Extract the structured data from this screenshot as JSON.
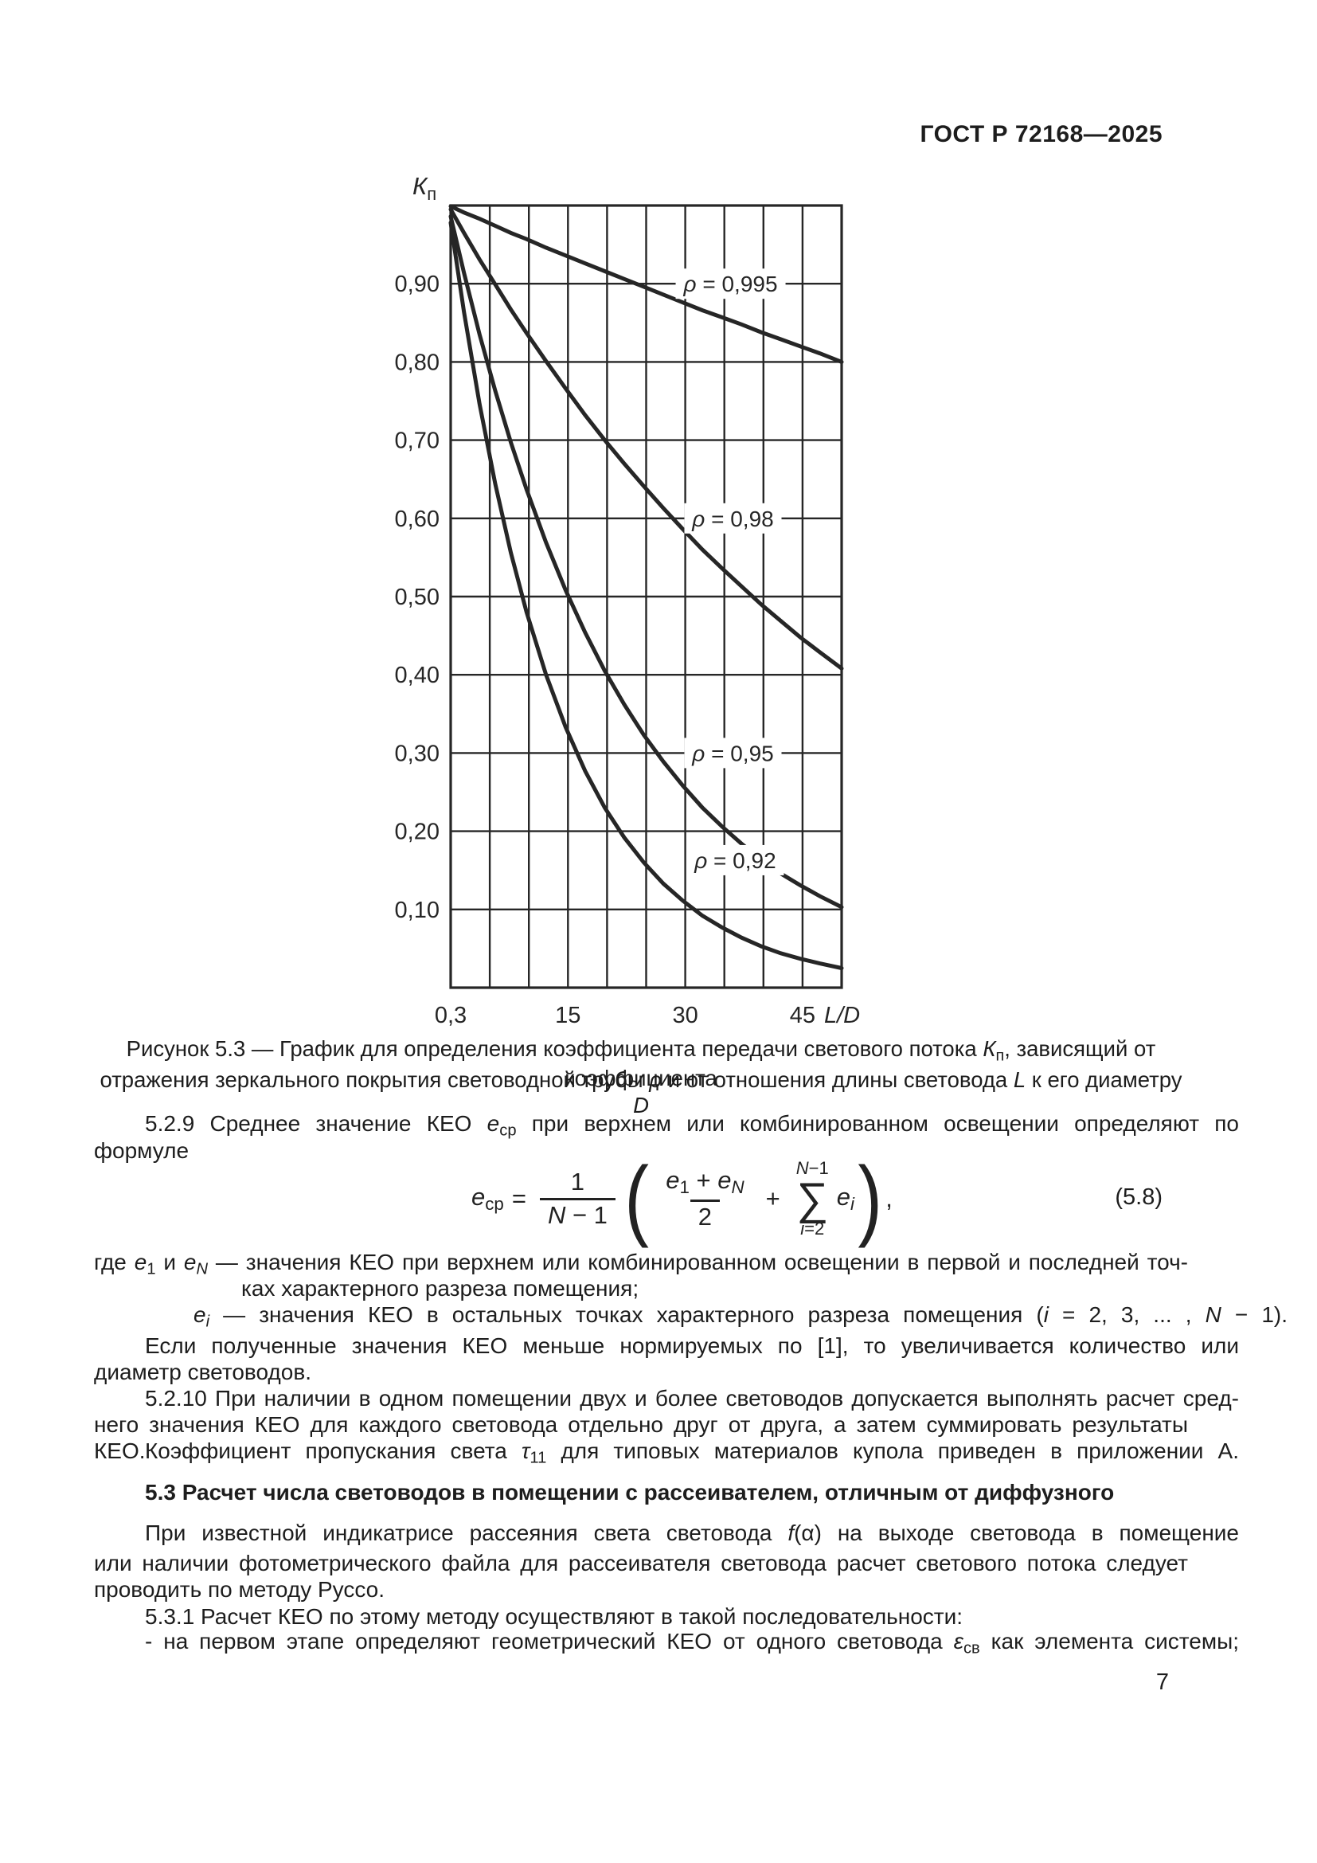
{
  "page": {
    "header": "ГОСТ Р 72168—2025",
    "number": "7"
  },
  "chart_data": {
    "type": "line",
    "title": "",
    "y_axis_title": {
      "main": "К",
      "sub": "п"
    },
    "x_axis_title": "L/D",
    "xlim": [
      0.3,
      50.3
    ],
    "ylim": [
      0,
      1.0
    ],
    "grid": true,
    "x_grid_columns": 10,
    "y_grid_step": 0.1,
    "x_ticks": [
      {
        "col": 0,
        "label": "0,3"
      },
      {
        "col": 3,
        "label": "15"
      },
      {
        "col": 6,
        "label": "30"
      },
      {
        "col": 9,
        "label": "45"
      }
    ],
    "y_ticks": [
      {
        "v": 0.9,
        "label": "0,90"
      },
      {
        "v": 0.8,
        "label": "0,80"
      },
      {
        "v": 0.7,
        "label": "0,70"
      },
      {
        "v": 0.6,
        "label": "0,60"
      },
      {
        "v": 0.5,
        "label": "0,50"
      },
      {
        "v": 0.4,
        "label": "0,40"
      },
      {
        "v": 0.3,
        "label": "0,30"
      },
      {
        "v": 0.2,
        "label": "0,20"
      },
      {
        "v": 0.1,
        "label": "0,10"
      }
    ],
    "series": [
      {
        "name": "ρ = 0,995",
        "reflectance": 0.995,
        "label": {
          "text": "ρ = 0,995",
          "x": 36.1,
          "y": 0.9,
          "w": 138
        },
        "points": [
          [
            0.3,
            0.999
          ],
          [
            2,
            0.991
          ],
          [
            4,
            0.983
          ],
          [
            6,
            0.974
          ],
          [
            8,
            0.965
          ],
          [
            10,
            0.957
          ],
          [
            12.5,
            0.946
          ],
          [
            15,
            0.936
          ],
          [
            17.5,
            0.926
          ],
          [
            20,
            0.916
          ],
          [
            22.5,
            0.906
          ],
          [
            25,
            0.896
          ],
          [
            27.5,
            0.886
          ],
          [
            30,
            0.876
          ],
          [
            32.5,
            0.866
          ],
          [
            35,
            0.857
          ],
          [
            37.5,
            0.848
          ],
          [
            40,
            0.838
          ],
          [
            42.5,
            0.829
          ],
          [
            45,
            0.82
          ],
          [
            47.5,
            0.811
          ],
          [
            50.3,
            0.8
          ]
        ]
      },
      {
        "name": "ρ = 0,98",
        "reflectance": 0.98,
        "label": {
          "text": "ρ = 0,98",
          "x": 36.4,
          "y": 0.6,
          "w": 122
        },
        "points": [
          [
            0.3,
            0.995
          ],
          [
            2,
            0.965
          ],
          [
            4,
            0.931
          ],
          [
            6,
            0.899
          ],
          [
            8,
            0.867
          ],
          [
            10,
            0.837
          ],
          [
            12.5,
            0.801
          ],
          [
            15,
            0.766
          ],
          [
            17.5,
            0.732
          ],
          [
            20,
            0.7
          ],
          [
            22.5,
            0.67
          ],
          [
            25,
            0.641
          ],
          [
            27.5,
            0.613
          ],
          [
            30,
            0.586
          ],
          [
            32.5,
            0.56
          ],
          [
            35,
            0.536
          ],
          [
            37.5,
            0.513
          ],
          [
            40,
            0.49
          ],
          [
            42.5,
            0.469
          ],
          [
            45,
            0.448
          ],
          [
            47.5,
            0.429
          ],
          [
            50.3,
            0.408
          ]
        ]
      },
      {
        "name": "ρ = 0,95",
        "reflectance": 0.95,
        "label": {
          "text": "ρ = 0,95",
          "x": 36.4,
          "y": 0.3,
          "w": 122
        },
        "points": [
          [
            0.3,
            0.986
          ],
          [
            2,
            0.914
          ],
          [
            4,
            0.835
          ],
          [
            6,
            0.763
          ],
          [
            8,
            0.697
          ],
          [
            10,
            0.637
          ],
          [
            12.5,
            0.569
          ],
          [
            15,
            0.508
          ],
          [
            17.5,
            0.454
          ],
          [
            20,
            0.405
          ],
          [
            22.5,
            0.362
          ],
          [
            25,
            0.323
          ],
          [
            27.5,
            0.289
          ],
          [
            30,
            0.258
          ],
          [
            32.5,
            0.23
          ],
          [
            35,
            0.206
          ],
          [
            37.5,
            0.184
          ],
          [
            40,
            0.164
          ],
          [
            42.5,
            0.146
          ],
          [
            45,
            0.131
          ],
          [
            47.5,
            0.117
          ],
          [
            50.3,
            0.103
          ]
        ]
      },
      {
        "name": "ρ = 0,92",
        "reflectance": 0.92,
        "label": {
          "text": "ρ = 0,92",
          "x": 36.7,
          "y": 0.163,
          "w": 122
        },
        "points": [
          [
            0.3,
            0.978
          ],
          [
            2,
            0.864
          ],
          [
            4,
            0.746
          ],
          [
            6,
            0.644
          ],
          [
            8,
            0.556
          ],
          [
            10,
            0.48
          ],
          [
            12.5,
            0.4
          ],
          [
            15,
            0.333
          ],
          [
            17.5,
            0.277
          ],
          [
            20,
            0.23
          ],
          [
            22.5,
            0.192
          ],
          [
            25,
            0.16
          ],
          [
            27.5,
            0.133
          ],
          [
            30,
            0.111
          ],
          [
            32.5,
            0.092
          ],
          [
            35,
            0.077
          ],
          [
            37.5,
            0.064
          ],
          [
            40,
            0.053
          ],
          [
            42.5,
            0.044
          ],
          [
            45,
            0.037
          ],
          [
            47.5,
            0.031
          ],
          [
            50.3,
            0.025
          ]
        ]
      }
    ]
  },
  "figure_caption": {
    "line1": [
      [
        "t",
        "Рисунок 5.3 — График для определения коэффициента передачи светового потока "
      ],
      [
        "i",
        "К"
      ],
      [
        "s",
        "п"
      ],
      [
        "t",
        ", зависящий от коэффициента"
      ]
    ],
    "line2": [
      [
        "t",
        "отражения зеркального покрытия световодной трубы "
      ],
      [
        "i",
        "ρ"
      ],
      [
        "t",
        " и от отношения длины световода "
      ],
      [
        "i",
        "L"
      ],
      [
        "t",
        " к его диаметру "
      ],
      [
        "i",
        "D"
      ]
    ]
  },
  "formula": {
    "number": "(5.8)",
    "lhs": [
      [
        "i",
        "е"
      ],
      [
        "s",
        "ср"
      ]
    ],
    "eq": "=",
    "coef_num": [
      [
        "t",
        "1"
      ]
    ],
    "coef_den": [
      [
        "i",
        "N"
      ],
      [
        "t",
        " − 1"
      ]
    ],
    "open_paren": "(",
    "frac_num": [
      [
        "i",
        "е"
      ],
      [
        "s",
        "1"
      ],
      [
        "t",
        " + "
      ],
      [
        "i",
        "е"
      ],
      [
        "si",
        "N"
      ]
    ],
    "frac_den": [
      [
        "t",
        "2"
      ]
    ],
    "plus": "+",
    "sum_upper": [
      [
        "i",
        "N"
      ],
      [
        "t",
        "−1"
      ]
    ],
    "sum_symbol": "∑",
    "sum_lower": [
      [
        "i",
        "i"
      ],
      [
        "t",
        "=2"
      ]
    ],
    "term": [
      [
        "i",
        "е"
      ],
      [
        "si",
        "i"
      ]
    ],
    "close_paren": ")",
    "comma": ","
  },
  "body": {
    "lines": [
      {
        "top": 1394,
        "indent": 64,
        "justify": true,
        "bold": false,
        "segments": [
          [
            "t",
            "5.2.9 Среднее значение КЕО "
          ],
          [
            "i",
            "е"
          ],
          [
            "s",
            "ср"
          ],
          [
            "t",
            " при верхнем или комбинированном освещении определяют по"
          ]
        ]
      },
      {
        "top": 1428,
        "indent": 0,
        "justify": false,
        "bold": false,
        "segments": [
          [
            "t",
            "формуле"
          ]
        ]
      },
      {
        "top": 1568,
        "indent": 0,
        "justify": true,
        "bold": false,
        "segments": [
          [
            "t",
            "где "
          ],
          [
            "i",
            "е"
          ],
          [
            "s",
            "1"
          ],
          [
            "t",
            " и "
          ],
          [
            "i",
            "е"
          ],
          [
            "si",
            "N"
          ],
          [
            "t",
            "  — значения КЕО при верхнем или комбинированном освещении в первой и последней точ-"
          ]
        ]
      },
      {
        "top": 1601,
        "indent": 185,
        "justify": false,
        "bold": false,
        "segments": [
          [
            "t",
            "ках характерного разреза помещения;"
          ]
        ]
      },
      {
        "top": 1634,
        "indent": 125,
        "justify": true,
        "bold": false,
        "segments": [
          [
            "i",
            "е"
          ],
          [
            "si",
            "i"
          ],
          [
            "t",
            " — значения КЕО в остальных точках характерного разреза помещения ("
          ],
          [
            "i",
            "i"
          ],
          [
            "t",
            " = 2, 3, ... , "
          ],
          [
            "i",
            "N"
          ],
          [
            "t",
            " − 1)."
          ]
        ]
      },
      {
        "top": 1673,
        "indent": 64,
        "justify": true,
        "bold": false,
        "segments": [
          [
            "t",
            "Если полученные значения КЕО меньше нормируемых по [1], то  увеличивается количество или"
          ]
        ]
      },
      {
        "top": 1706,
        "indent": 0,
        "justify": false,
        "bold": false,
        "segments": [
          [
            "t",
            "диаметр световодов."
          ]
        ]
      },
      {
        "top": 1739,
        "indent": 64,
        "justify": true,
        "bold": false,
        "segments": [
          [
            "t",
            "5.2.10 При наличии в одном помещении двух и более световодов допускается выполнять расчет сред-"
          ]
        ]
      },
      {
        "top": 1772,
        "indent": 0,
        "justify": true,
        "bold": false,
        "segments": [
          [
            "t",
            "него значения КЕО для каждого световода отдельно друг от друга, а затем суммировать результаты КЕО."
          ]
        ]
      },
      {
        "top": 1805,
        "indent": 64,
        "justify": true,
        "bold": false,
        "segments": [
          [
            "t",
            "Коэффициент пропускания света "
          ],
          [
            "i",
            "τ"
          ],
          [
            "s",
            "11"
          ],
          [
            "t",
            " для типовых материалов купола приведен в приложении А."
          ]
        ]
      },
      {
        "top": 1857,
        "indent": 64,
        "justify": false,
        "bold": true,
        "segments": [
          [
            "t",
            "5.3 Расчет числа световодов в помещении с рассеивателем, отличным от диффузного"
          ]
        ]
      },
      {
        "top": 1908,
        "indent": 64,
        "justify": true,
        "bold": false,
        "segments": [
          [
            "t",
            "При известной индикатрисе рассеяния света световода "
          ],
          [
            "i",
            "f"
          ],
          [
            "t",
            "(α) на выходе световода в помещение"
          ]
        ]
      },
      {
        "top": 1946,
        "indent": 0,
        "justify": true,
        "bold": false,
        "segments": [
          [
            "t",
            "или наличии фотометрического файла для рассеивателя световода расчет светового потока следует"
          ]
        ]
      },
      {
        "top": 1979,
        "indent": 0,
        "justify": false,
        "bold": false,
        "segments": [
          [
            "t",
            "проводить по методу Руссо."
          ]
        ]
      },
      {
        "top": 2013,
        "indent": 64,
        "justify": false,
        "bold": false,
        "segments": [
          [
            "t",
            "5.3.1 Расчет КЕО по этому методу осуществляют в такой последовательности:"
          ]
        ]
      },
      {
        "top": 2044,
        "indent": 64,
        "justify": true,
        "bold": false,
        "segments": [
          [
            "t",
            "- на первом этапе определяют геометрический КЕО от одного световода "
          ],
          [
            "i",
            "ε"
          ],
          [
            "s",
            "св"
          ],
          [
            "t",
            " как элемента системы;"
          ]
        ]
      }
    ]
  }
}
